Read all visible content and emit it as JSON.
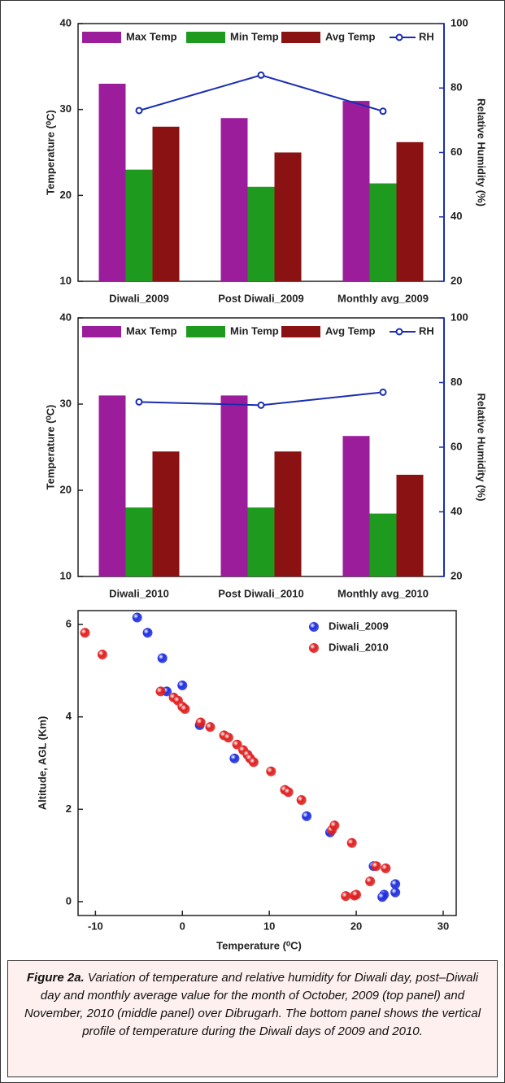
{
  "chart_data": [
    {
      "type": "bar",
      "ylabel": "Temperature (⁰C)",
      "y2label": "Relative Humidity (%)",
      "categories": [
        "Diwali_2009",
        "Post Diwali_2009",
        "Monthly avg_2009"
      ],
      "series": [
        {
          "name": "Max Temp",
          "color": "#9c1d9c",
          "values": [
            33,
            29,
            31
          ]
        },
        {
          "name": "Min Temp",
          "color": "#1e9a1e",
          "values": [
            23,
            21,
            21.4
          ]
        },
        {
          "name": "Avg Temp",
          "color": "#8a1212",
          "values": [
            28,
            25,
            26.2
          ]
        },
        {
          "name": "RH",
          "type": "line",
          "axis": "y2",
          "color": "#1a2db0",
          "values": [
            73,
            84,
            72.8
          ]
        }
      ],
      "ylim": [
        10,
        40
      ],
      "yticks": [
        10,
        20,
        30,
        40
      ],
      "y2lim": [
        20,
        100
      ],
      "y2ticks": [
        20,
        40,
        60,
        80,
        100
      ],
      "legend": "top"
    },
    {
      "type": "bar",
      "ylabel": "Temperature (⁰C)",
      "y2label": "Relative Humidity (%)",
      "categories": [
        "Diwali_2010",
        "Post Diwali_2010",
        "Monthly avg_2010"
      ],
      "series": [
        {
          "name": "Max Temp",
          "color": "#9c1d9c",
          "values": [
            31,
            31,
            26.3
          ]
        },
        {
          "name": "Min Temp",
          "color": "#1e9a1e",
          "values": [
            18,
            18,
            17.3
          ]
        },
        {
          "name": "Avg Temp",
          "color": "#8a1212",
          "values": [
            24.5,
            24.5,
            21.8
          ]
        },
        {
          "name": "RH",
          "type": "line",
          "axis": "y2",
          "color": "#1a2db0",
          "values": [
            74,
            73,
            77
          ]
        }
      ],
      "ylim": [
        10,
        40
      ],
      "yticks": [
        10,
        20,
        30,
        40
      ],
      "y2lim": [
        20,
        100
      ],
      "y2ticks": [
        20,
        40,
        60,
        80,
        100
      ],
      "legend": "top"
    },
    {
      "type": "scatter",
      "xlabel": "Temperature (⁰C)",
      "ylabel": "Altitude, AGL (Km)",
      "series": [
        {
          "name": "Diwali_2009",
          "color": "#1f2fe0",
          "x": [
            -5.2,
            -4,
            -2.3,
            -1.8,
            0,
            2,
            6,
            14.3,
            17,
            22,
            24.5,
            24.5,
            23.2,
            23
          ],
          "y": [
            6.15,
            5.82,
            5.27,
            4.55,
            4.68,
            3.82,
            3.1,
            1.85,
            1.5,
            0.77,
            0.38,
            0.2,
            0.15,
            0.1
          ]
        },
        {
          "name": "Diwali_2010",
          "color": "#e02020",
          "x": [
            -11.2,
            -9.2,
            -2.5,
            -1,
            -0.5,
            0,
            0.3,
            2.1,
            3.2,
            4.8,
            5.3,
            6.3,
            7,
            7.5,
            7.8,
            8.2,
            10.2,
            11.8,
            12.2,
            13.7,
            17.2,
            17.5,
            19.5,
            21.6,
            22.3,
            23.4,
            18.8,
            19.8,
            20
          ],
          "y": [
            5.82,
            5.35,
            4.55,
            4.42,
            4.35,
            4.22,
            4.17,
            3.88,
            3.78,
            3.6,
            3.55,
            3.4,
            3.28,
            3.18,
            3.1,
            3.02,
            2.82,
            2.42,
            2.37,
            2.2,
            1.55,
            1.65,
            1.27,
            0.44,
            0.77,
            0.72,
            0.12,
            0.13,
            0.15
          ]
        }
      ],
      "xlim": [
        -12,
        31.5
      ],
      "xticks": [
        -10,
        0,
        10,
        20,
        30
      ],
      "ylim": [
        -0.3,
        6.3
      ],
      "yticks": [
        0,
        2,
        4,
        6
      ],
      "legend": "top-right"
    }
  ],
  "caption": {
    "label": "Figure 2a.",
    "text": "Variation of temperature and relative humidity for Diwali day, post–Diwali day and monthly average value for the month of October, 2009 (top panel) and November, 2010 (middle panel) over Dibrugarh. The bottom panel shows the vertical profile of temperature during the Diwali days of 2009 and 2010."
  }
}
